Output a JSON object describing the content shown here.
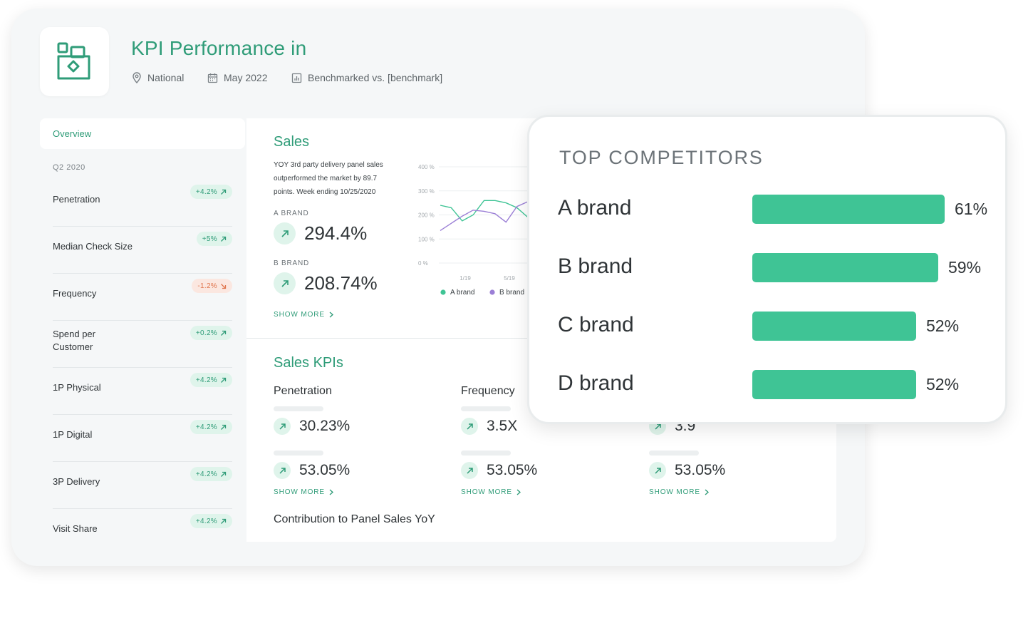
{
  "header": {
    "title": "KPI Performance in",
    "location": "National",
    "date": "May 2022",
    "benchmark": "Benchmarked vs. [benchmark]"
  },
  "sidebar": {
    "overview_label": "Overview",
    "period": "Q2 2020",
    "items": [
      {
        "label": "Penetration",
        "change": "+4.2%",
        "trend": "up"
      },
      {
        "label": "Median Check Size",
        "change": "+5%",
        "trend": "up"
      },
      {
        "label": "Frequency",
        "change": "-1.2%",
        "trend": "down"
      },
      {
        "label": "Spend per Customer",
        "change": "+0.2%",
        "trend": "up"
      },
      {
        "label": "1P Physical",
        "change": "+4.2%",
        "trend": "up"
      },
      {
        "label": "1P Digital",
        "change": "+4.2%",
        "trend": "up"
      },
      {
        "label": "3P Delivery",
        "change": "+4.2%",
        "trend": "up"
      },
      {
        "label": "Visit Share",
        "change": "+4.2%",
        "trend": "up"
      }
    ]
  },
  "sales": {
    "title": "Sales",
    "description": "YOY 3rd party delivery panel sales outperformed the market by 89.7 points. Week ending 10/25/2020",
    "brands": [
      {
        "label": "A BRAND",
        "value": "294.4%"
      },
      {
        "label": "B BRAND",
        "value": "208.74%"
      }
    ],
    "show_more": "SHOW MORE"
  },
  "chart_data": {
    "type": "line",
    "y_tick_labels": [
      "400 %",
      "300 %",
      "200 %",
      "100 %",
      "0 %"
    ],
    "ylim": [
      0,
      400
    ],
    "x_tick_labels": [
      "1/19",
      "5/19"
    ],
    "series": [
      {
        "name": "A brand",
        "color": "#3fc495",
        "values": [
          240,
          230,
          175,
          200,
          260,
          260,
          250,
          230,
          190
        ]
      },
      {
        "name": "B brand",
        "color": "#9b7fd6",
        "values": [
          135,
          165,
          195,
          220,
          215,
          205,
          170,
          235,
          255
        ]
      }
    ]
  },
  "sales_kpis": {
    "title": "Sales KPIs",
    "columns": [
      {
        "header": "Penetration",
        "value1": "30.23%",
        "value2": "53.05%",
        "show_more": "SHOW MORE"
      },
      {
        "header": "Frequency",
        "value1": "3.5X",
        "value2": "53.05%",
        "show_more": "SHOW MORE"
      },
      {
        "header": "",
        "value1": "3.9",
        "value2": "53.05%",
        "show_more": "SHOW MORE"
      }
    ],
    "contribution_label": "Contribution to Panel Sales YoY"
  },
  "competitors": {
    "title": "TOP COMPETITORS",
    "accent": "#3fc495",
    "items": [
      {
        "name": "A brand",
        "value": "61%",
        "pct": 61
      },
      {
        "name": "B brand",
        "value": "59%",
        "pct": 59
      },
      {
        "name": "C brand",
        "value": "52%",
        "pct": 52
      },
      {
        "name": "D brand",
        "value": "52%",
        "pct": 52
      }
    ]
  },
  "colors": {
    "brand_green": "#2f9c78",
    "bar_green": "#3fc495",
    "negative": "#e0754d"
  }
}
